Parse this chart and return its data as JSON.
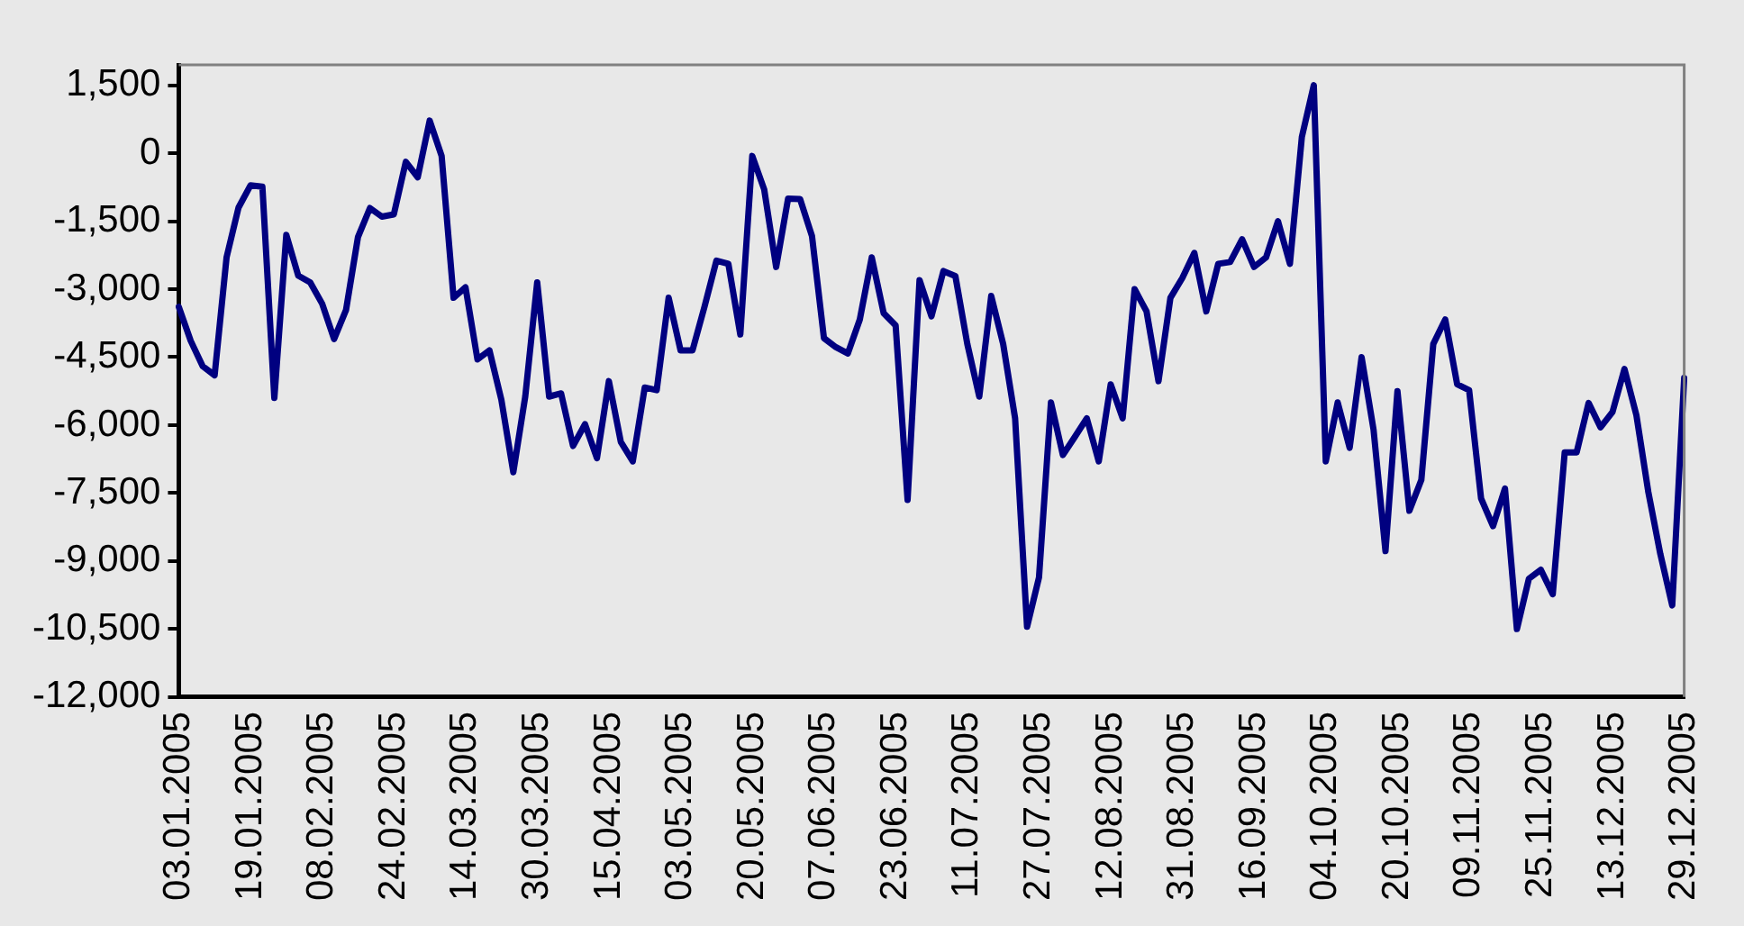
{
  "chart_data": {
    "type": "line",
    "categories": [
      "03.01.2005",
      null,
      null,
      null,
      null,
      null,
      "19.01.2005",
      null,
      null,
      null,
      null,
      null,
      "08.02.2005",
      null,
      null,
      null,
      null,
      null,
      "24.02.2005",
      null,
      null,
      null,
      null,
      null,
      "14.03.2005",
      null,
      null,
      null,
      null,
      null,
      "30.03.2005",
      null,
      null,
      null,
      null,
      null,
      "15.04.2005",
      null,
      null,
      null,
      null,
      null,
      "03.05.2005",
      null,
      null,
      null,
      null,
      null,
      "20.05.2005",
      null,
      null,
      null,
      null,
      null,
      "07.06.2005",
      null,
      null,
      null,
      null,
      null,
      "23.06.2005",
      null,
      null,
      null,
      null,
      null,
      "11.07.2005",
      null,
      null,
      null,
      null,
      null,
      "27.07.2005",
      null,
      null,
      null,
      null,
      null,
      "12.08.2005",
      null,
      null,
      null,
      null,
      null,
      "31.08.2005",
      null,
      null,
      null,
      null,
      null,
      "16.09.2005",
      null,
      null,
      null,
      null,
      null,
      "04.10.2005",
      null,
      null,
      null,
      null,
      null,
      "20.10.2005",
      null,
      null,
      null,
      null,
      null,
      "09.11.2005",
      null,
      null,
      null,
      null,
      null,
      "25.11.2005",
      null,
      null,
      null,
      null,
      null,
      "13.12.2005",
      null,
      null,
      null,
      null,
      null,
      "29.12.2005"
    ],
    "series": [
      {
        "color": "#000080",
        "values": [
          -3390,
          -4140,
          -4700,
          -4900,
          -2300,
          -1200,
          -710,
          -740,
          -5400,
          -1800,
          -2700,
          -2850,
          -3320,
          -4100,
          -3460,
          -1850,
          -1210,
          -1400,
          -1350,
          -190,
          -530,
          720,
          -60,
          -3190,
          -2960,
          -4550,
          -4350,
          -5440,
          -7040,
          -5370,
          -2850,
          -5370,
          -5300,
          -6460,
          -5980,
          -6730,
          -5030,
          -6370,
          -6800,
          -5170,
          -5230,
          -3190,
          -4350,
          -4350,
          -3390,
          -2370,
          -2440,
          -4000,
          -60,
          -800,
          -2510,
          -1000,
          -1010,
          -1830,
          -4080,
          -4280,
          -4420,
          -3670,
          -2300,
          -3530,
          -3800,
          -7650,
          -2800,
          -3600,
          -2600,
          -2710,
          -4210,
          -5370,
          -3150,
          -4210,
          -5850,
          -10450,
          -9360,
          -5500,
          -6660,
          -6260,
          -5850,
          -6800,
          -5100,
          -5850,
          -3000,
          -3490,
          -5030,
          -3190,
          -2750,
          -2200,
          -3490,
          -2440,
          -2400,
          -1900,
          -2510,
          -2300,
          -1500,
          -2440,
          360,
          1500,
          -6800,
          -5500,
          -6500,
          -4500,
          -6100,
          -8780,
          -5250,
          -7890,
          -7210,
          -4210,
          -3670,
          -5100,
          -5230,
          -7620,
          -8230,
          -7400,
          -10500,
          -9390,
          -9190,
          -9730,
          -6600,
          -6600,
          -5510,
          -6050,
          -5710,
          -4760,
          -5780,
          -7480,
          -8840,
          -9980,
          -4960
        ]
      }
    ],
    "ylim": [
      -12000,
      1950
    ],
    "yticks": [
      {
        "value": -12000,
        "label": "-12,000"
      },
      {
        "value": -10500,
        "label": "-10,500"
      },
      {
        "value": -9000,
        "label": "-9,000"
      },
      {
        "value": -7500,
        "label": "-7,500"
      },
      {
        "value": -6000,
        "label": "-6,000"
      },
      {
        "value": -4500,
        "label": "-4,500"
      },
      {
        "value": -3000,
        "label": "-3,000"
      },
      {
        "value": -1500,
        "label": "-1,500"
      },
      0,
      {
        "value": 1500,
        "label": "1,500"
      }
    ],
    "grid": false,
    "legend": false,
    "marker": "none",
    "line_style": "solid"
  }
}
